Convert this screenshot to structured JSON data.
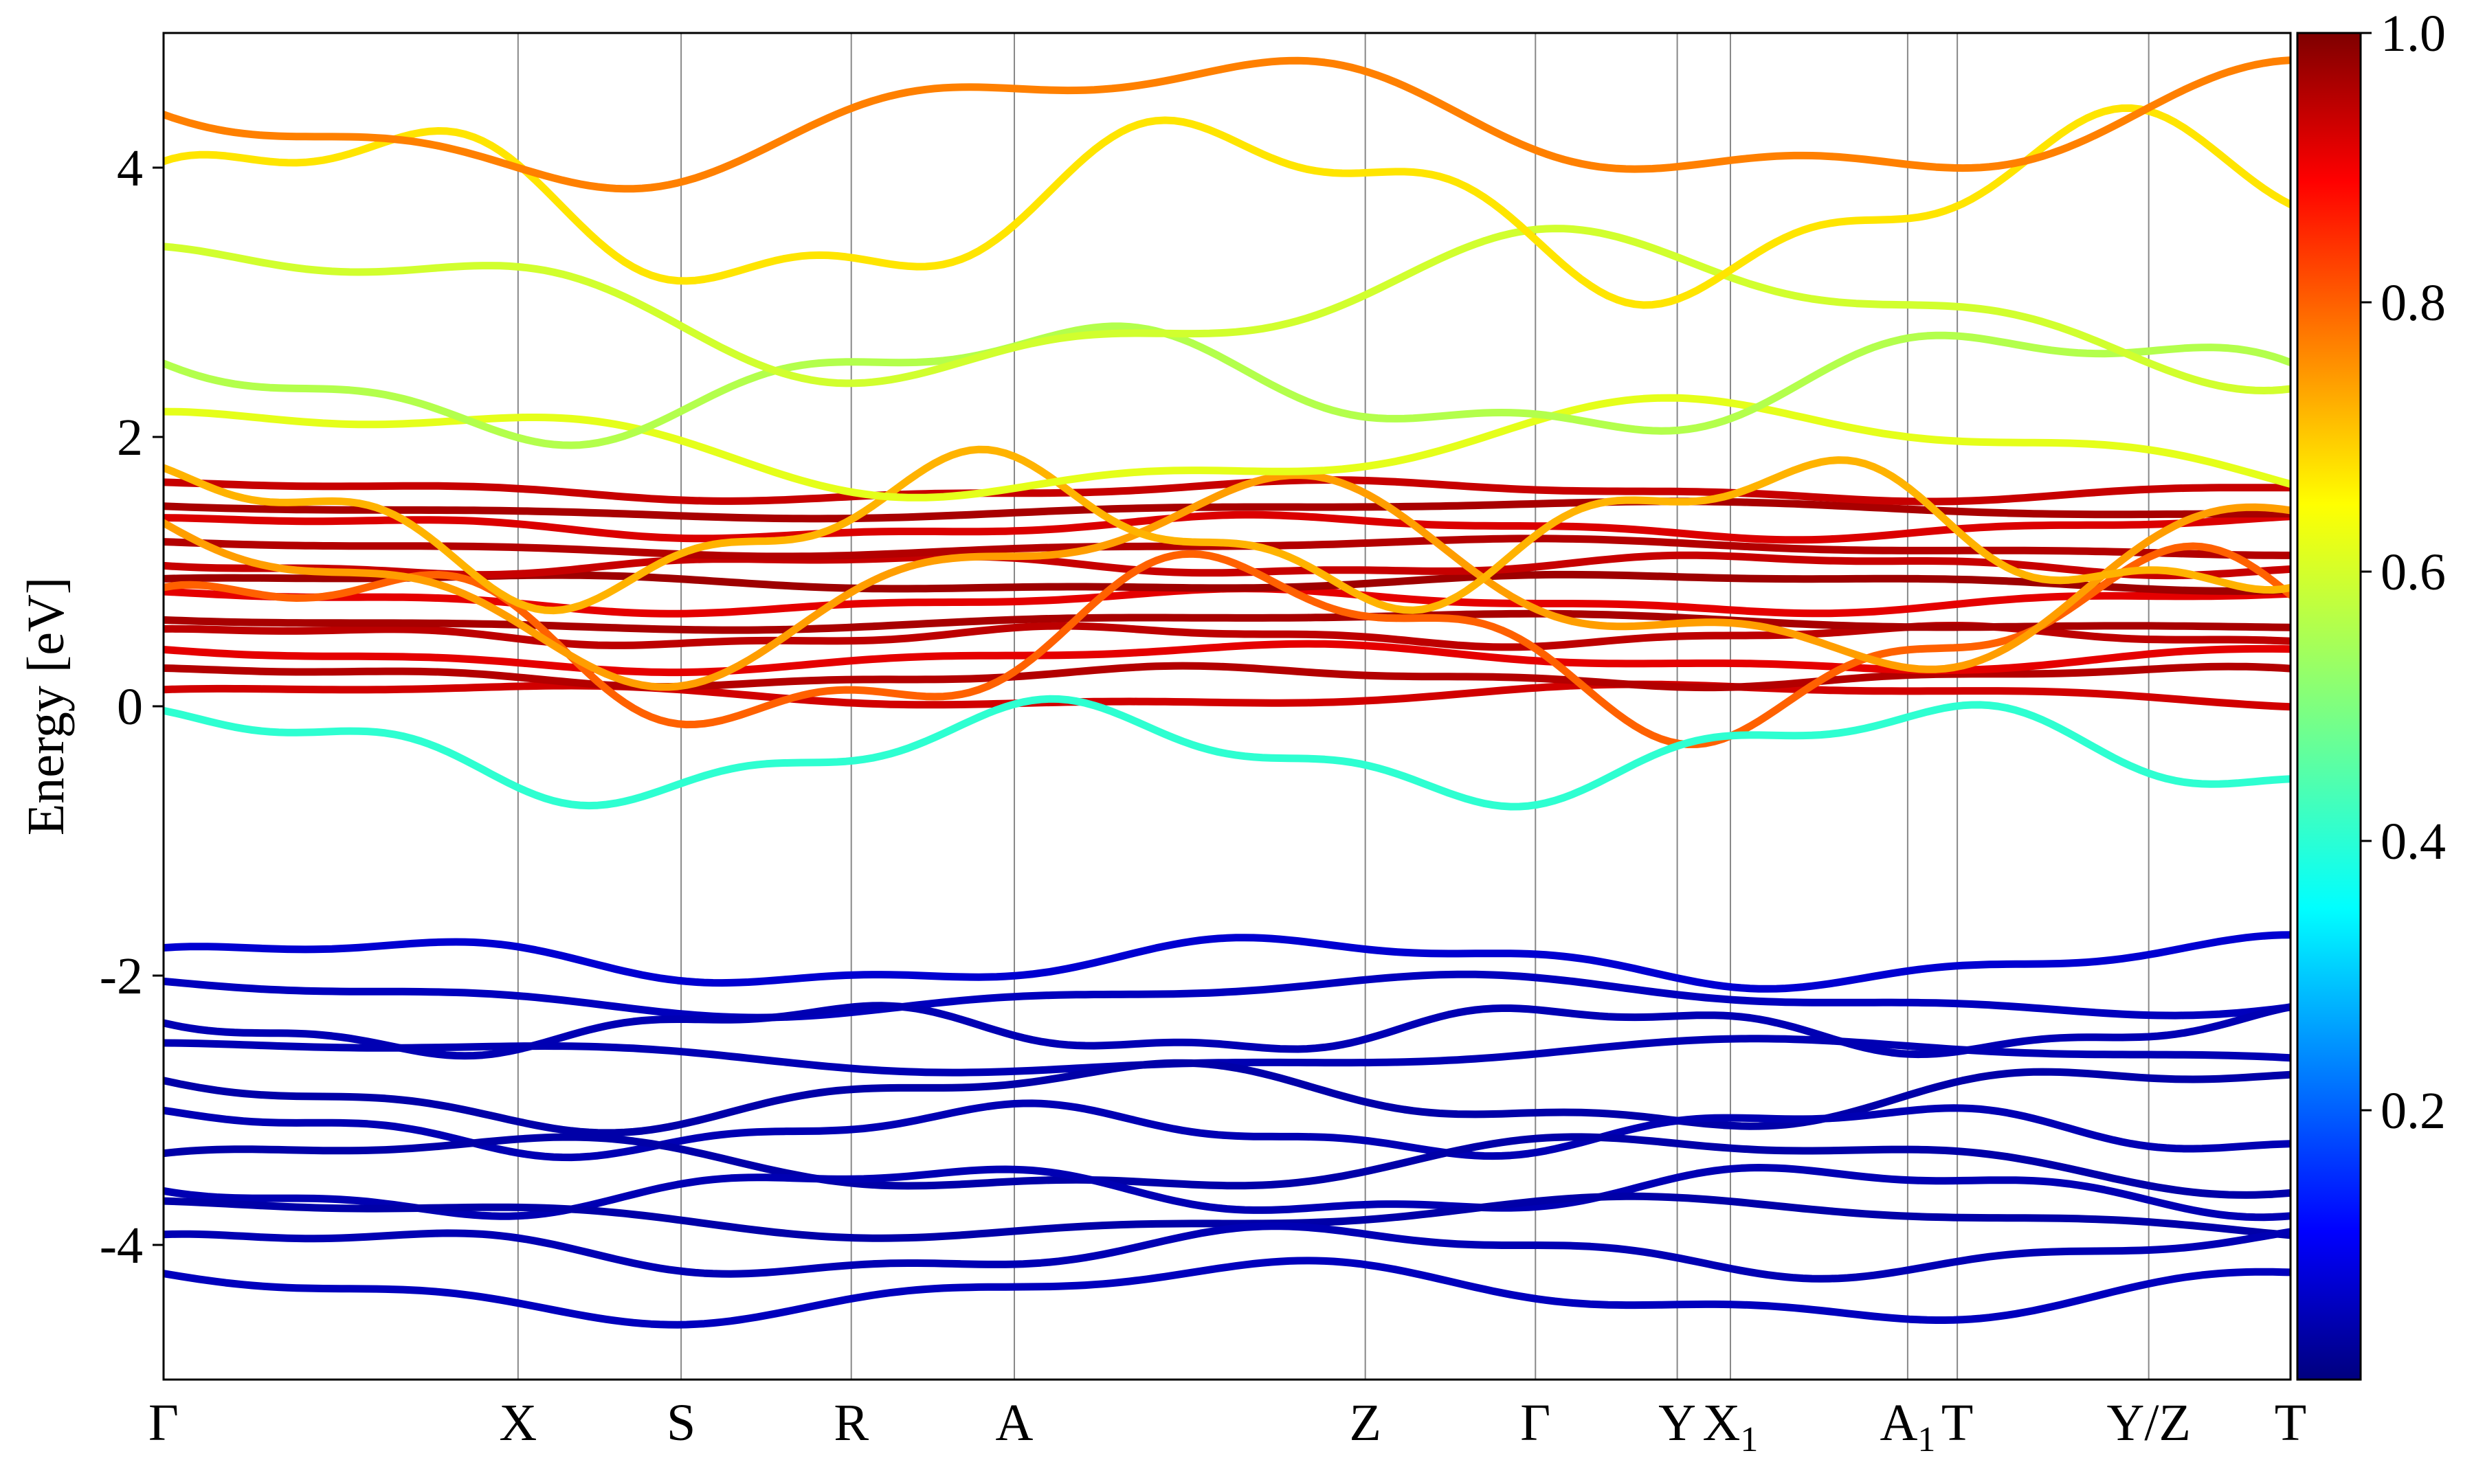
{
  "chart_data": {
    "type": "line",
    "title": "",
    "xlabel": "",
    "ylabel": "Energy [eV]",
    "ylim": [
      -5,
      5
    ],
    "yticks": [
      -4,
      -2,
      0,
      2,
      4
    ],
    "ytick_labels": [
      "-4",
      "-2",
      "0",
      "2",
      "4"
    ],
    "kpath": [
      {
        "label": "Γ",
        "x": 0.0,
        "sub": ""
      },
      {
        "label": "X",
        "x": 1.0,
        "sub": ""
      },
      {
        "label": "S",
        "x": 1.46,
        "sub": ""
      },
      {
        "label": "R",
        "x": 1.94,
        "sub": ""
      },
      {
        "label": "A",
        "x": 2.4,
        "sub": ""
      },
      {
        "label": "Z",
        "x": 3.39,
        "sub": ""
      },
      {
        "label": "Γ",
        "x": 3.87,
        "sub": ""
      },
      {
        "label": "Y",
        "x": 4.27,
        "sub": ""
      },
      {
        "label": "X",
        "x": 4.42,
        "sub": "1"
      },
      {
        "label": "A",
        "x": 4.92,
        "sub": "1"
      },
      {
        "label": "T",
        "x": 5.06,
        "sub": ""
      },
      {
        "label": "Y/Z",
        "x": 5.6,
        "sub": ""
      },
      {
        "label": "T",
        "x": 6.0,
        "sub": ""
      }
    ],
    "colorbar": {
      "range": [
        0.0,
        1.0
      ],
      "ticks": [
        0.2,
        0.4,
        0.6,
        0.8,
        1.0
      ],
      "tick_labels": [
        "0.2",
        "0.4",
        "0.6",
        "0.8",
        "1.0"
      ],
      "colormap": "jet"
    },
    "bands": [
      {
        "w": 0.92,
        "base": 0.08,
        "amp": 0.07,
        "freq": 1.7,
        "phase": 0.3
      },
      {
        "w": 0.95,
        "base": 0.22,
        "amp": 0.06,
        "freq": 2.3,
        "phase": 1.1
      },
      {
        "w": 0.9,
        "base": 0.36,
        "amp": 0.08,
        "freq": 1.9,
        "phase": 2.0
      },
      {
        "w": 0.94,
        "base": 0.52,
        "amp": 0.06,
        "freq": 2.7,
        "phase": 0.7
      },
      {
        "w": 0.96,
        "base": 0.63,
        "amp": 0.05,
        "freq": 1.5,
        "phase": 2.6
      },
      {
        "w": 0.9,
        "base": 0.78,
        "amp": 0.07,
        "freq": 2.1,
        "phase": 1.5
      },
      {
        "w": 0.97,
        "base": 0.92,
        "amp": 0.05,
        "freq": 1.8,
        "phase": 0.2
      },
      {
        "w": 0.93,
        "base": 1.05,
        "amp": 0.06,
        "freq": 2.5,
        "phase": 2.9
      },
      {
        "w": 0.95,
        "base": 1.18,
        "amp": 0.05,
        "freq": 1.6,
        "phase": 1.9
      },
      {
        "w": 0.91,
        "base": 1.33,
        "amp": 0.07,
        "freq": 2.2,
        "phase": 0.9
      },
      {
        "w": 0.96,
        "base": 1.46,
        "amp": 0.05,
        "freq": 1.4,
        "phase": 2.3
      },
      {
        "w": 0.93,
        "base": 1.6,
        "amp": 0.06,
        "freq": 2.0,
        "phase": 1.2
      },
      {
        "w": 0.78,
        "base": 0.45,
        "amp": 0.55,
        "freq": 2.4,
        "phase": 0.5
      },
      {
        "w": 0.72,
        "base": 0.95,
        "amp": 0.6,
        "freq": 1.9,
        "phase": 2.1
      },
      {
        "w": 0.7,
        "base": 1.3,
        "amp": 0.45,
        "freq": 2.8,
        "phase": 1.4
      },
      {
        "w": 0.6,
        "base": 1.9,
        "amp": 0.3,
        "freq": 1.6,
        "phase": 0.8
      },
      {
        "w": 0.55,
        "base": 2.4,
        "amp": 0.35,
        "freq": 2.2,
        "phase": 2.4
      },
      {
        "w": 0.58,
        "base": 2.95,
        "amp": 0.45,
        "freq": 1.7,
        "phase": 1.0
      },
      {
        "w": 0.65,
        "base": 3.7,
        "amp": 0.55,
        "freq": 2.5,
        "phase": 0.3
      },
      {
        "w": 0.75,
        "base": 4.35,
        "amp": 0.4,
        "freq": 1.8,
        "phase": 2.7
      },
      {
        "w": 0.42,
        "base": -0.35,
        "amp": 0.3,
        "freq": 2.6,
        "phase": 1.3
      },
      {
        "w": 0.08,
        "base": -1.9,
        "amp": 0.15,
        "freq": 2.3,
        "phase": 0.4
      },
      {
        "w": 0.06,
        "base": -2.15,
        "amp": 0.12,
        "freq": 1.7,
        "phase": 1.8
      },
      {
        "w": 0.05,
        "base": -2.4,
        "amp": 0.15,
        "freq": 2.9,
        "phase": 2.5
      },
      {
        "w": 0.05,
        "base": -2.6,
        "amp": 0.1,
        "freq": 1.5,
        "phase": 0.9
      },
      {
        "w": 0.04,
        "base": -2.9,
        "amp": 0.2,
        "freq": 2.1,
        "phase": 2.2
      },
      {
        "w": 0.05,
        "base": -3.15,
        "amp": 0.15,
        "freq": 2.6,
        "phase": 1.6
      },
      {
        "w": 0.04,
        "base": -3.4,
        "amp": 0.18,
        "freq": 1.8,
        "phase": 0.1
      },
      {
        "w": 0.05,
        "base": -3.6,
        "amp": 0.15,
        "freq": 2.4,
        "phase": 2.8
      },
      {
        "w": 0.04,
        "base": -3.8,
        "amp": 0.12,
        "freq": 1.6,
        "phase": 1.1
      },
      {
        "w": 0.05,
        "base": -4.05,
        "amp": 0.15,
        "freq": 2.2,
        "phase": 0.6
      },
      {
        "w": 0.06,
        "base": -4.35,
        "amp": 0.18,
        "freq": 1.9,
        "phase": 2.0
      }
    ]
  }
}
